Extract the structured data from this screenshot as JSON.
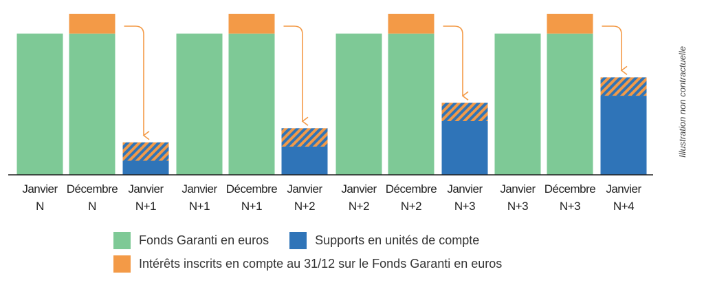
{
  "chart_data": {
    "type": "bar",
    "stacked": true,
    "categories": [
      [
        "Janvier",
        "N"
      ],
      [
        "Décembre",
        "N"
      ],
      [
        "Janvier",
        "N+1"
      ],
      [
        "Janvier",
        "N+1"
      ],
      [
        "Décembre",
        "N+1"
      ],
      [
        "Janvier",
        "N+2"
      ],
      [
        "Janvier",
        "N+2"
      ],
      [
        "Décembre",
        "N+2"
      ],
      [
        "Janvier",
        "N+3"
      ],
      [
        "Janvier",
        "N+3"
      ],
      [
        "Décembre",
        "N+3"
      ],
      [
        "Janvier",
        "N+4"
      ]
    ],
    "series": [
      {
        "name": "Fonds Garanti en euros",
        "color": "#7ec996",
        "values": [
          100,
          100,
          0,
          100,
          100,
          0,
          100,
          100,
          0,
          100,
          100,
          0
        ]
      },
      {
        "name": "Supports en unités de compte",
        "color": "#2f74b8",
        "values": [
          0,
          0,
          10,
          0,
          0,
          20,
          0,
          0,
          38,
          0,
          0,
          56
        ]
      },
      {
        "name": "Intérêts inscrits en compte au 31/12 sur le Fonds Garanti en euros",
        "color": "#f39a47",
        "values": [
          0,
          14,
          13,
          0,
          14,
          13,
          0,
          14,
          13,
          0,
          14,
          13
        ]
      }
    ],
    "hatched_series": "Intérêts inscrits en compte au 31/12 sur le Fonds Garanti en euros",
    "hatch_applies_to_categories": [
      2,
      5,
      8,
      11
    ],
    "arrows": [
      [
        1,
        2
      ],
      [
        4,
        5
      ],
      [
        7,
        8
      ],
      [
        10,
        11
      ]
    ],
    "ylim": [
      0,
      114
    ],
    "grid": false,
    "legend_position": "bottom"
  },
  "side_note": "Illustration non contractuelle",
  "legend": {
    "items": [
      {
        "label": "Fonds Garanti en euros",
        "color": "#7ec996"
      },
      {
        "label": "Supports en unités de compte",
        "color": "#2f74b8"
      },
      {
        "label": "Intérêts inscrits en compte au 31/12 sur le Fonds Garanti en euros",
        "color": "#f39a47"
      }
    ]
  }
}
